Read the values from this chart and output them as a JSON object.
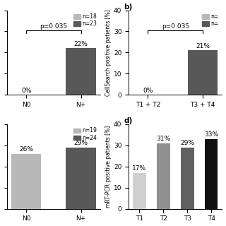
{
  "panel_a": {
    "categories": [
      "N0",
      "N+"
    ],
    "values": [
      0,
      22
    ],
    "colors": [
      "#b8b8b8",
      "#585858"
    ],
    "labels": [
      "0%",
      "22%"
    ],
    "legend": [
      "n=18",
      "n=23"
    ],
    "pvalue": "p=0.035",
    "ylim": [
      0,
      40
    ],
    "yticks": [
      0,
      10,
      20,
      30,
      40
    ],
    "show_yticklabels": false,
    "show_ylabel": false
  },
  "panel_b": {
    "categories": [
      "T1 + T2",
      "T3 + T4"
    ],
    "values": [
      0,
      21
    ],
    "colors": [
      "#b8b8b8",
      "#585858"
    ],
    "labels": [
      "0%",
      "21%"
    ],
    "legend": [
      "n=",
      "n="
    ],
    "ylabel": "CellSearch positive patients [%]",
    "panel_label": "b)",
    "pvalue": "p=0.035",
    "ylim": [
      0,
      40
    ],
    "yticks": [
      0,
      10,
      20,
      30,
      40
    ],
    "show_yticklabels": true,
    "show_ylabel": true
  },
  "panel_c": {
    "categories": [
      "N0",
      "N+"
    ],
    "values": [
      26,
      29
    ],
    "colors": [
      "#b8b8b8",
      "#585858"
    ],
    "labels": [
      "26%",
      "29%"
    ],
    "legend": [
      "n=19",
      "n=24"
    ],
    "ylim": [
      0,
      40
    ],
    "yticks": [
      0,
      10,
      20,
      30,
      40
    ],
    "show_yticklabels": false,
    "show_ylabel": false
  },
  "panel_d": {
    "categories": [
      "T1",
      "T2",
      "T3",
      "T4"
    ],
    "values": [
      17,
      31,
      29,
      33
    ],
    "colors": [
      "#d0d0d0",
      "#909090",
      "#606060",
      "#101010"
    ],
    "labels": [
      "17%",
      "31%",
      "29%",
      "33%"
    ],
    "ylabel": "mRT-PCR positive patients [%]",
    "panel_label": "d)",
    "ylim": [
      0,
      40
    ],
    "yticks": [
      0,
      10,
      20,
      30,
      40
    ],
    "show_yticklabels": true,
    "show_ylabel": true
  },
  "light_color": "#b8b8b8",
  "dark_color": "#585858",
  "fontsize": 6.5
}
